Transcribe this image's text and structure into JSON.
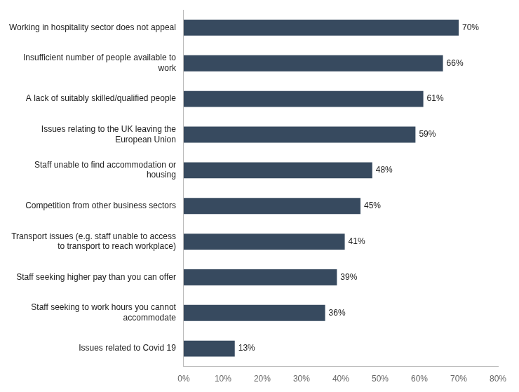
{
  "chart_data": {
    "type": "bar",
    "orientation": "horizontal",
    "categories": [
      "Issues related to Covid 19",
      "Staff seeking to work hours you cannot\naccommodate",
      "Staff seeking higher pay than you can offer",
      "Transport issues (e.g. staff unable to access\nto transport to reach workplace)",
      "Competition from other business sectors",
      "Staff unable to find accommodation or\nhousing",
      "Issues relating to the UK leaving the\nEuropean Union",
      "A lack of suitably skilled/qualified people",
      "Insufficient number of people available to\nwork",
      "Working in hospitality sector does not appeal"
    ],
    "values": [
      13,
      36,
      39,
      41,
      45,
      48,
      59,
      61,
      66,
      70
    ],
    "value_labels": [
      "13%",
      "36%",
      "39%",
      "41%",
      "45%",
      "48%",
      "59%",
      "61%",
      "66%",
      "70%"
    ],
    "data_labels": true,
    "color": "#374a5f",
    "xlim": [
      0,
      80
    ],
    "xticks": [
      {
        "value": 0,
        "label": "0%"
      },
      {
        "value": 10,
        "label": "10%"
      },
      {
        "value": 20,
        "label": "20%"
      },
      {
        "value": 30,
        "label": "30%"
      },
      {
        "value": 40,
        "label": "40%"
      },
      {
        "value": 50,
        "label": "50%"
      },
      {
        "value": 60,
        "label": "60%"
      },
      {
        "value": 70,
        "label": "70%"
      },
      {
        "value": 80,
        "label": "80%"
      }
    ],
    "grid": false
  }
}
